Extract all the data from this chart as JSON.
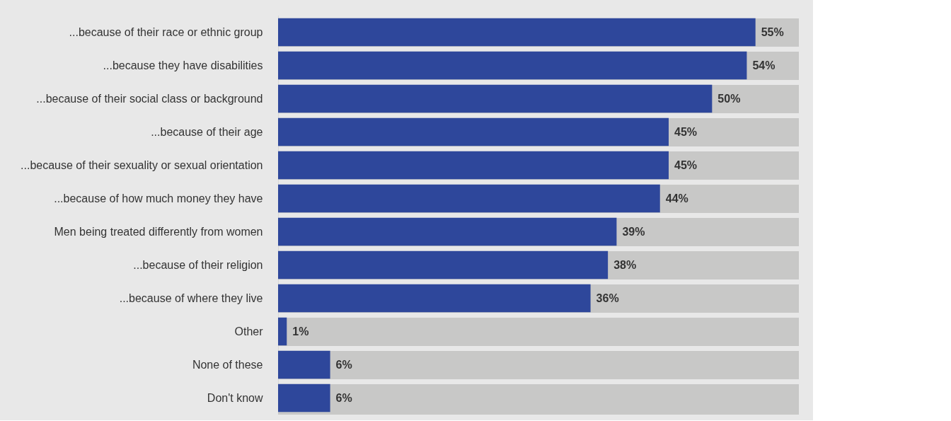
{
  "chart_data": {
    "type": "bar",
    "orientation": "horizontal",
    "categories": [
      "...because of their race or ethnic group",
      "...because they have disabilities",
      "...because of their social class or background",
      "...because of their age",
      "...because of their sexuality or sexual orientation",
      "...because of how much money they have",
      "Men being treated differently from women",
      "...because of their religion",
      "...because of where they live",
      "Other",
      "None of these",
      "Don't know"
    ],
    "values": [
      55,
      54,
      50,
      45,
      45,
      44,
      39,
      38,
      36,
      1,
      6,
      6
    ],
    "value_labels": [
      "55%",
      "54%",
      "50%",
      "45%",
      "45%",
      "44%",
      "39%",
      "38%",
      "36%",
      "1%",
      "6%",
      "6%"
    ],
    "color": "#2e479b",
    "xlim": [
      0,
      60
    ],
    "tick_labels": "y",
    "grid": false
  }
}
